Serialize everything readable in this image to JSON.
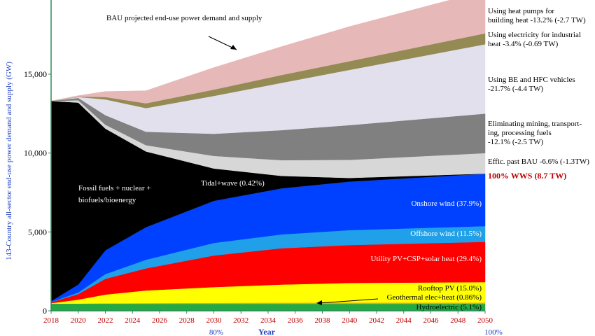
{
  "chart_data": {
    "type": "area",
    "stacking": "stacked",
    "title": "",
    "ylabel": "143-Country all-sector end-use power demand and supply (GW)",
    "xlabel": "Year",
    "x": [
      2018,
      2020,
      2022,
      2025,
      2030,
      2035,
      2040,
      2050
    ],
    "xticks": [
      "2018",
      "2020",
      "2022",
      "2024",
      "2026",
      "2028",
      "2030",
      "2032",
      "2034",
      "2036",
      "2038",
      "2040",
      "2042",
      "2044",
      "2046",
      "2048",
      "2050"
    ],
    "yticks": [
      "0",
      "5,000",
      "10,000",
      "15,000"
    ],
    "xlim": [
      2018,
      2050
    ],
    "ylim": [
      0,
      19700
    ],
    "grid": false,
    "bottom_labels": [
      "80%",
      "100%"
    ],
    "series": [
      {
        "name": "Hydroelectric (5.1%)",
        "color": "#22aa44",
        "values": [
          450,
          450,
          450,
          445,
          445,
          445,
          445,
          445
        ]
      },
      {
        "name": "Geothermal elec+heat (0.86%)",
        "color": "#f0a030",
        "values": [
          5,
          12,
          28,
          45,
          60,
          70,
          72,
          75
        ]
      },
      {
        "name": "Rooftop PV (15.0%)",
        "color": "#ffff00",
        "values": [
          30,
          250,
          550,
          800,
          1000,
          1150,
          1250,
          1300
        ]
      },
      {
        "name": "Utility PV+CSP+solar heat (29.4%)",
        "color": "#ff0000",
        "values": [
          60,
          350,
          1000,
          1400,
          2000,
          2300,
          2400,
          2550
        ]
      },
      {
        "name": "Offshore wind (11.5%)",
        "color": "#1fa0e8",
        "values": [
          15,
          100,
          300,
          550,
          800,
          880,
          950,
          1000
        ]
      },
      {
        "name": "Onshore wind (37.9%)",
        "color": "#0040ff",
        "values": [
          60,
          500,
          1500,
          2050,
          2650,
          2900,
          3050,
          3290
        ]
      },
      {
        "name": "Tidal+wave (0.42%)",
        "color": "#2040c0",
        "values": [
          0,
          5,
          10,
          15,
          20,
          25,
          30,
          37
        ]
      },
      {
        "name": "Fossil fuels + nuclear + biofuels/bioenergy",
        "color": "#000000",
        "values": [
          12680,
          11530,
          7712,
          4795,
          2045,
          780,
          223,
          0
        ]
      },
      {
        "name": "Effic. past BAU -6.6% (-1.3TW)",
        "color": "#d7d7d7",
        "values": [
          0,
          150,
          250,
          400,
          800,
          1000,
          1150,
          1300
        ]
      },
      {
        "name": "Eliminating mining, transporting, processing fuels -12.1% (-2.5 TW)",
        "color": "#808080",
        "values": [
          0,
          150,
          600,
          850,
          1400,
          1900,
          2200,
          2500
        ]
      },
      {
        "name": "Using BE and HFC vehicles -21.7% (-4.4 TW)",
        "color": "#e3e0ee",
        "values": [
          0,
          60,
          1000,
          1500,
          2400,
          3000,
          3500,
          4400
        ]
      },
      {
        "name": "Using electricity for industrial heat -3.4% (-0.69 TW)",
        "color": "#948a54",
        "values": [
          0,
          20,
          150,
          300,
          400,
          500,
          550,
          690
        ]
      },
      {
        "name": "Using heat pumps for building heat -13.2% (-2.7 TW)",
        "color": "#e6b8b7",
        "values": [
          0,
          60,
          350,
          800,
          1400,
          1800,
          2200,
          2700
        ]
      }
    ],
    "annotations": {
      "bau": "BAU projected end-use power demand and supply",
      "wws_total": "100% WWS (8.7 TW)",
      "fossil_line2": "biofuels/bioenergy",
      "building_heat_l1": "Using heat pumps for",
      "building_heat_l2": "building heat -13.2% (-2.7 TW)",
      "industrial_l1": "Using electricity for industrial",
      "industrial_l2": "heat -3.4% (-0.69 TW)",
      "vehicles_l1": "Using BE and HFC vehicles",
      "vehicles_l2": "-21.7% (-4.4 TW)",
      "mining_l1": "Eliminating mining, transport-",
      "mining_l2": "ing, processing fuels",
      "mining_l3": "-12.1% (-2.5 TW)",
      "fossil_line1": "Fossil fuels + nuclear +"
    },
    "colors": {
      "axis_y": "#2e8b57",
      "tick_x": "#c00000",
      "ylabel": "#1f3fbf",
      "highlight": "#c00000"
    }
  }
}
